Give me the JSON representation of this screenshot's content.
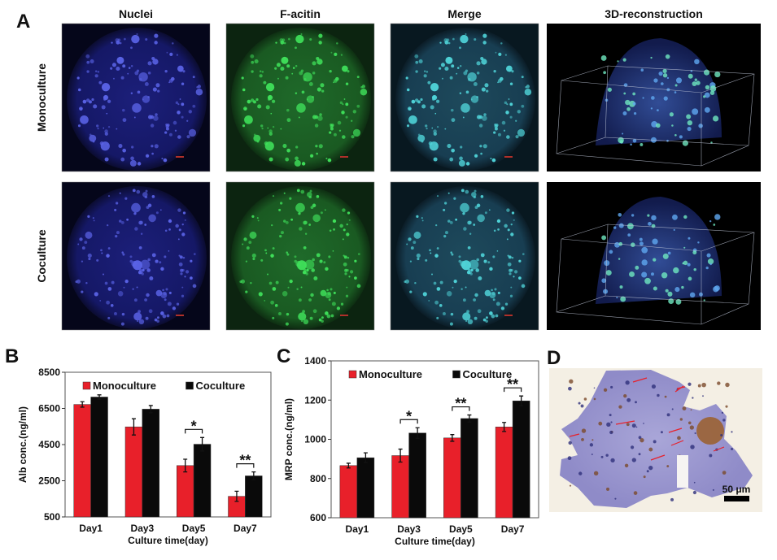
{
  "panels": {
    "A": {
      "label": "A",
      "columns": [
        "Nuclei",
        "F-acitin",
        "Merge",
        "3D-reconstruction"
      ],
      "rows": [
        "Monoculture",
        "Coculture"
      ]
    },
    "D": {
      "label": "D",
      "scale_bar": "50 μm"
    }
  },
  "chart_data": [
    {
      "panel": "B",
      "type": "bar",
      "categories": [
        "Day1",
        "Day3",
        "Day5",
        "Day7"
      ],
      "xlabel": "Culture time(day)",
      "ylabel": "Alb conc.(ng/ml)",
      "ylim": [
        500,
        8500
      ],
      "yticks": [
        "8500",
        "6500",
        "4500",
        "2500",
        "500"
      ],
      "legend": "top",
      "series": [
        {
          "name": "Monoculture",
          "color": "#e8202a",
          "values": [
            6720,
            5480,
            3340,
            1640
          ],
          "errors": [
            150,
            450,
            350,
            280
          ]
        },
        {
          "name": "Coculture",
          "color": "#0a0a0a",
          "values": [
            7130,
            6460,
            4520,
            2770
          ],
          "errors": [
            120,
            200,
            370,
            220
          ]
        }
      ],
      "significance": [
        {
          "category": "Day5",
          "label": "*"
        },
        {
          "category": "Day7",
          "label": "**"
        }
      ]
    },
    {
      "panel": "C",
      "type": "bar",
      "categories": [
        "Day1",
        "Day3",
        "Day5",
        "Day7"
      ],
      "xlabel": "Culture time(day)",
      "ylabel": "MRP conc.(ng/ml)",
      "ylim": [
        600,
        1400
      ],
      "yticks": [
        "1400",
        "1200",
        "1000",
        "800",
        "600"
      ],
      "legend": "top",
      "series": [
        {
          "name": "Monoculture",
          "color": "#e8202a",
          "values": [
            866,
            917,
            1007,
            1063
          ],
          "errors": [
            12,
            33,
            17,
            23
          ]
        },
        {
          "name": "Coculture",
          "color": "#0a0a0a",
          "values": [
            906,
            1032,
            1106,
            1196
          ],
          "errors": [
            25,
            27,
            18,
            25
          ]
        }
      ],
      "significance": [
        {
          "category": "Day3",
          "label": "*"
        },
        {
          "category": "Day5",
          "label": "**"
        },
        {
          "category": "Day7",
          "label": "**"
        }
      ]
    }
  ]
}
